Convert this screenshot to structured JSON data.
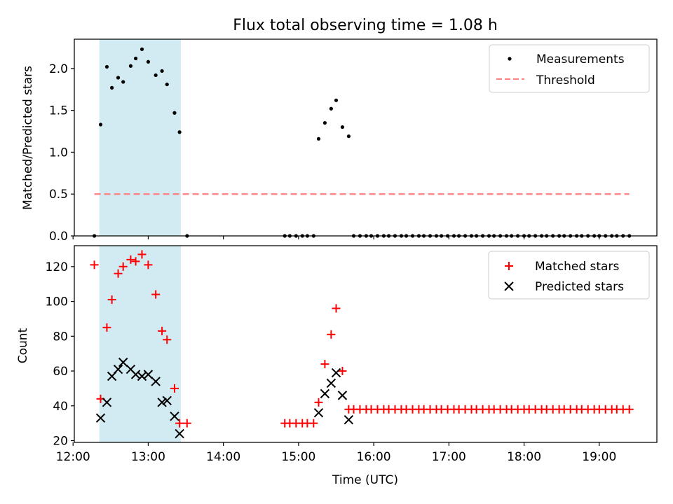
{
  "figure_title": "Flux total observing time = 1.08 h",
  "colors": {
    "shade": "#add8e6",
    "threshold": "#ff7f7f",
    "measurement": "#000000",
    "matched": "#ff0000",
    "predicted": "#000000"
  },
  "chart_data": [
    {
      "type": "scatter",
      "ylabel": "Matched/Predicted stars",
      "xlim": [
        "12:01",
        "19:46"
      ],
      "ylim": [
        0,
        2.35
      ],
      "yticks": [
        0.0,
        0.5,
        1.0,
        1.5,
        2.0
      ],
      "ytick_labels": [
        "0.0",
        "0.5",
        "1.0",
        "1.5",
        "2.0"
      ],
      "x_ticks": [
        "12:00",
        "13:00",
        "14:00",
        "15:00",
        "16:00",
        "17:00",
        "18:00",
        "19:00"
      ],
      "shaded_interval": [
        "12:21",
        "13:26"
      ],
      "legend_position": "top-right",
      "series": [
        {
          "name": "Measurements",
          "marker": "dot",
          "points": [
            [
              "12:17",
              0.0
            ],
            [
              "12:22",
              1.33
            ],
            [
              "12:27",
              2.02
            ],
            [
              "12:31",
              1.77
            ],
            [
              "12:36",
              1.89
            ],
            [
              "12:40",
              1.84
            ],
            [
              "12:46",
              2.03
            ],
            [
              "12:50",
              2.12
            ],
            [
              "12:55",
              2.23
            ],
            [
              "13:00",
              2.08
            ],
            [
              "13:06",
              1.92
            ],
            [
              "13:11",
              1.97
            ],
            [
              "13:15",
              1.81
            ],
            [
              "13:21",
              1.47
            ],
            [
              "13:25",
              1.24
            ],
            [
              "13:31",
              0.0
            ],
            [
              "14:49",
              0.0
            ],
            [
              "14:53",
              0.0
            ],
            [
              "14:58",
              0.0
            ],
            [
              "15:03",
              0.0
            ],
            [
              "15:07",
              0.0
            ],
            [
              "15:12",
              0.0
            ],
            [
              "15:16",
              1.16
            ],
            [
              "15:21",
              1.35
            ],
            [
              "15:26",
              1.52
            ],
            [
              "15:30",
              1.62
            ],
            [
              "15:35",
              1.3
            ],
            [
              "15:40",
              1.19
            ],
            [
              "15:44",
              0.0
            ],
            [
              "15:49",
              0.0
            ],
            [
              "15:54",
              0.0
            ],
            [
              "15:58",
              0.0
            ],
            [
              "16:03",
              0.0
            ],
            [
              "16:08",
              0.0
            ],
            [
              "16:12",
              0.0
            ],
            [
              "16:17",
              0.0
            ],
            [
              "16:22",
              0.0
            ],
            [
              "16:26",
              0.0
            ],
            [
              "16:31",
              0.0
            ],
            [
              "16:36",
              0.0
            ],
            [
              "16:40",
              0.0
            ],
            [
              "16:45",
              0.0
            ],
            [
              "16:50",
              0.0
            ],
            [
              "16:54",
              0.0
            ],
            [
              "16:59",
              0.0
            ],
            [
              "17:04",
              0.0
            ],
            [
              "17:08",
              0.0
            ],
            [
              "17:13",
              0.0
            ],
            [
              "17:18",
              0.0
            ],
            [
              "17:22",
              0.0
            ],
            [
              "17:27",
              0.0
            ],
            [
              "17:32",
              0.0
            ],
            [
              "17:36",
              0.0
            ],
            [
              "17:41",
              0.0
            ],
            [
              "17:46",
              0.0
            ],
            [
              "17:50",
              0.0
            ],
            [
              "17:55",
              0.0
            ],
            [
              "18:00",
              0.0
            ],
            [
              "18:04",
              0.0
            ],
            [
              "18:09",
              0.0
            ],
            [
              "18:14",
              0.0
            ],
            [
              "18:18",
              0.0
            ],
            [
              "18:23",
              0.0
            ],
            [
              "18:28",
              0.0
            ],
            [
              "18:32",
              0.0
            ],
            [
              "18:37",
              0.0
            ],
            [
              "18:42",
              0.0
            ],
            [
              "18:46",
              0.0
            ],
            [
              "18:51",
              0.0
            ],
            [
              "18:56",
              0.0
            ],
            [
              "19:00",
              0.0
            ],
            [
              "19:05",
              0.0
            ],
            [
              "19:10",
              0.0
            ],
            [
              "19:14",
              0.0
            ],
            [
              "19:19",
              0.0
            ],
            [
              "19:24",
              0.0
            ]
          ]
        },
        {
          "name": "Threshold",
          "marker": "dashed-line",
          "points": [
            [
              "12:17",
              0.5
            ],
            [
              "19:24",
              0.5
            ]
          ]
        }
      ]
    },
    {
      "type": "scatter",
      "ylabel": "Count",
      "xlabel": "Time (UTC)",
      "xlim": [
        "12:01",
        "19:46"
      ],
      "ylim": [
        19,
        132
      ],
      "yticks": [
        20,
        40,
        60,
        80,
        100,
        120
      ],
      "ytick_labels": [
        "20",
        "40",
        "60",
        "80",
        "100",
        "120"
      ],
      "x_ticks": [
        "12:00",
        "13:00",
        "14:00",
        "15:00",
        "16:00",
        "17:00",
        "18:00",
        "19:00"
      ],
      "shaded_interval": [
        "12:21",
        "13:26"
      ],
      "legend_position": "top-right",
      "series": [
        {
          "name": "Matched stars",
          "marker": "plus",
          "points": [
            [
              "12:17",
              121
            ],
            [
              "12:22",
              44
            ],
            [
              "12:27",
              85
            ],
            [
              "12:31",
              101
            ],
            [
              "12:36",
              116
            ],
            [
              "12:40",
              120
            ],
            [
              "12:46",
              124
            ],
            [
              "12:50",
              123
            ],
            [
              "12:55",
              127
            ],
            [
              "13:00",
              121
            ],
            [
              "13:06",
              104
            ],
            [
              "13:11",
              83
            ],
            [
              "13:15",
              78
            ],
            [
              "13:21",
              50
            ],
            [
              "13:25",
              30
            ],
            [
              "13:31",
              30
            ],
            [
              "14:49",
              30
            ],
            [
              "14:53",
              30
            ],
            [
              "14:58",
              30
            ],
            [
              "15:03",
              30
            ],
            [
              "15:07",
              30
            ],
            [
              "15:12",
              30
            ],
            [
              "15:16",
              42
            ],
            [
              "15:21",
              64
            ],
            [
              "15:26",
              81
            ],
            [
              "15:30",
              96
            ],
            [
              "15:35",
              60
            ],
            [
              "15:40",
              38
            ],
            [
              "15:44",
              38
            ],
            [
              "15:49",
              38
            ],
            [
              "15:54",
              38
            ],
            [
              "15:58",
              38
            ],
            [
              "16:03",
              38
            ],
            [
              "16:08",
              38
            ],
            [
              "16:12",
              38
            ],
            [
              "16:17",
              38
            ],
            [
              "16:22",
              38
            ],
            [
              "16:26",
              38
            ],
            [
              "16:31",
              38
            ],
            [
              "16:36",
              38
            ],
            [
              "16:40",
              38
            ],
            [
              "16:45",
              38
            ],
            [
              "16:50",
              38
            ],
            [
              "16:54",
              38
            ],
            [
              "16:59",
              38
            ],
            [
              "17:04",
              38
            ],
            [
              "17:08",
              38
            ],
            [
              "17:13",
              38
            ],
            [
              "17:18",
              38
            ],
            [
              "17:22",
              38
            ],
            [
              "17:27",
              38
            ],
            [
              "17:32",
              38
            ],
            [
              "17:36",
              38
            ],
            [
              "17:41",
              38
            ],
            [
              "17:46",
              38
            ],
            [
              "17:50",
              38
            ],
            [
              "17:55",
              38
            ],
            [
              "18:00",
              38
            ],
            [
              "18:04",
              38
            ],
            [
              "18:09",
              38
            ],
            [
              "18:14",
              38
            ],
            [
              "18:18",
              38
            ],
            [
              "18:23",
              38
            ],
            [
              "18:28",
              38
            ],
            [
              "18:32",
              38
            ],
            [
              "18:37",
              38
            ],
            [
              "18:42",
              38
            ],
            [
              "18:46",
              38
            ],
            [
              "18:51",
              38
            ],
            [
              "18:56",
              38
            ],
            [
              "19:00",
              38
            ],
            [
              "19:05",
              38
            ],
            [
              "19:10",
              38
            ],
            [
              "19:14",
              38
            ],
            [
              "19:19",
              38
            ],
            [
              "19:24",
              38
            ]
          ]
        },
        {
          "name": "Predicted stars",
          "marker": "cross",
          "points": [
            [
              "12:22",
              33
            ],
            [
              "12:27",
              42
            ],
            [
              "12:31",
              57
            ],
            [
              "12:36",
              61
            ],
            [
              "12:40",
              65
            ],
            [
              "12:46",
              61
            ],
            [
              "12:50",
              58
            ],
            [
              "12:55",
              57
            ],
            [
              "13:00",
              58
            ],
            [
              "13:06",
              54
            ],
            [
              "13:11",
              42
            ],
            [
              "13:15",
              43
            ],
            [
              "13:21",
              34
            ],
            [
              "13:25",
              24
            ],
            [
              "15:16",
              36
            ],
            [
              "15:21",
              47
            ],
            [
              "15:26",
              53
            ],
            [
              "15:30",
              59
            ],
            [
              "15:35",
              46
            ],
            [
              "15:40",
              32
            ]
          ]
        }
      ]
    }
  ]
}
